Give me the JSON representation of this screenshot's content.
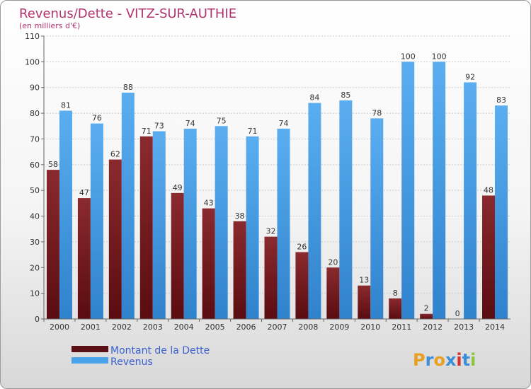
{
  "chart_data": {
    "type": "bar",
    "title": "Revenus/Dette - VITZ-SUR-AUTHIE",
    "subtitle": "(en milliers d'€)",
    "categories": [
      "2000",
      "2001",
      "2002",
      "2003",
      "2004",
      "2005",
      "2006",
      "2007",
      "2008",
      "2009",
      "2010",
      "2011",
      "2012",
      "2013",
      "2014"
    ],
    "series": [
      {
        "name": "Montant de la Dette",
        "color": "#7a1e22",
        "values": [
          58,
          47,
          62,
          71,
          49,
          43,
          38,
          32,
          26,
          20,
          13,
          8,
          2,
          0,
          48
        ]
      },
      {
        "name": "Revenus",
        "color": "#4aa2e8",
        "values": [
          81,
          76,
          88,
          73,
          74,
          75,
          71,
          74,
          84,
          85,
          78,
          100,
          100,
          92,
          83
        ]
      }
    ],
    "ylim": [
      0,
      110
    ],
    "yticks": [
      0,
      10,
      20,
      30,
      40,
      50,
      60,
      70,
      80,
      90,
      100,
      110
    ],
    "grid": true,
    "legend_position": "bottom-left"
  },
  "brand": {
    "letters": [
      "P",
      "r",
      "o",
      "x",
      "i",
      "t",
      "i"
    ],
    "colors": [
      "#e8a020",
      "#3a8fd8",
      "#e8a020",
      "#3a8fd8",
      "#d8302a",
      "#3a8fd8",
      "#8cc63f"
    ]
  }
}
